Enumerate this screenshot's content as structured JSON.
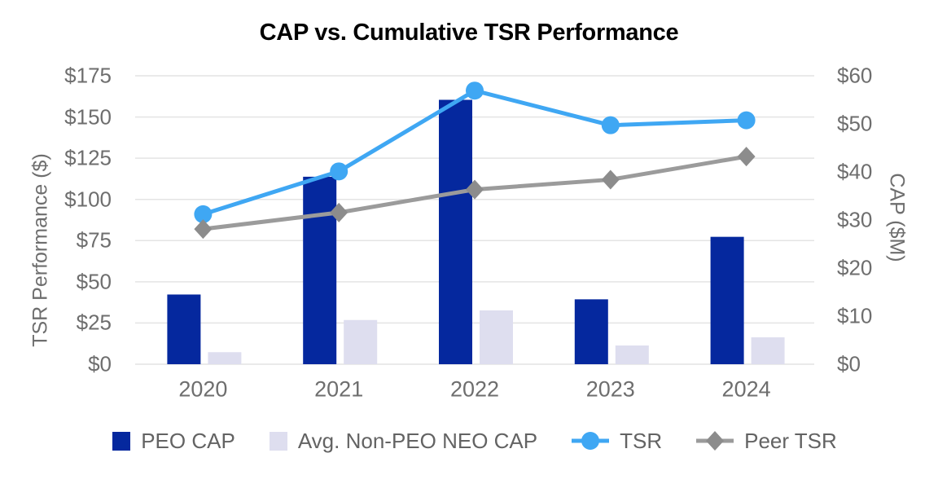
{
  "chart_data": {
    "type": "combo-bar-line",
    "title": "CAP vs. Cumulative TSR Performance",
    "categories": [
      "2020",
      "2021",
      "2022",
      "2023",
      "2024"
    ],
    "bar_series": [
      {
        "name": "PEO CAP",
        "axis": "right",
        "color": "#05289E",
        "values": [
          14.5,
          39,
          55,
          13.5,
          26.5
        ]
      },
      {
        "name": "Avg. Non-PEO NEO CAP",
        "axis": "right",
        "color": "#DEDEEF",
        "values": [
          2.5,
          9.2,
          11.2,
          3.9,
          5.6
        ]
      }
    ],
    "line_series": [
      {
        "name": "TSR",
        "axis": "left",
        "marker": "circle",
        "color": "#3FA7F3",
        "marker_color": "#3FA7F3",
        "values": [
          91,
          117,
          166,
          145,
          148
        ]
      },
      {
        "name": "Peer TSR",
        "axis": "left",
        "marker": "diamond",
        "color": "#9B9B9B",
        "marker_color": "#8C8C8C",
        "values": [
          82,
          92,
          106,
          112,
          126
        ]
      }
    ],
    "left_axis": {
      "label": "TSR Performance ($)",
      "min": 0,
      "max": 175,
      "tick_values": [
        175,
        150,
        125,
        100,
        75,
        50,
        25,
        0
      ],
      "tick_labels": [
        "$175",
        "$150",
        "$125",
        "$100",
        "$75",
        "$50",
        "$25",
        "$0"
      ]
    },
    "right_axis": {
      "label": "CAP ($M)",
      "min": 0,
      "max": 60,
      "tick_values": [
        60,
        50,
        40,
        30,
        20,
        10,
        0
      ],
      "tick_labels": [
        "$60",
        "$50",
        "$40",
        "$30",
        "$20",
        "$10",
        "$0"
      ]
    },
    "grid": {
      "horizontal": true,
      "color": "#E4E4E4"
    },
    "legend_position": "bottom"
  },
  "colors": {
    "background": "#FFFFFF",
    "axis_text": "#6E6E6E",
    "legend_text": "#636363",
    "title_text": "#000000"
  }
}
